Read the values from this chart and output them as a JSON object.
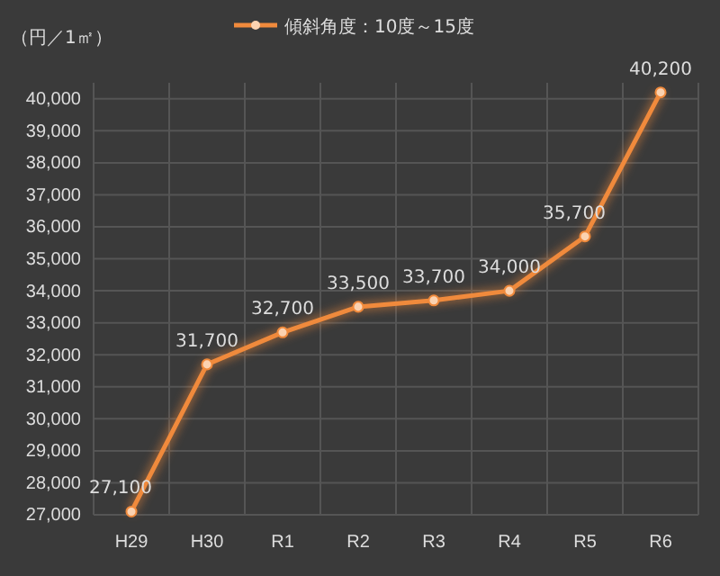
{
  "chart_data": {
    "type": "line",
    "ylabel": "（円／1㎡）",
    "categories": [
      "H29",
      "H30",
      "R1",
      "R2",
      "R3",
      "R4",
      "R5",
      "R6"
    ],
    "series": [
      {
        "name": "傾斜角度：10度～15度",
        "color": "#f08a3c",
        "values": [
          27100,
          31700,
          32700,
          33500,
          33700,
          34000,
          35700,
          40200
        ],
        "value_labels": [
          "27,100",
          "31,700",
          "32,700",
          "33,500",
          "33,700",
          "34,000",
          "35,700",
          "40,200"
        ]
      }
    ],
    "ylim": [
      27000,
      40500
    ],
    "yticks": [
      {
        "value": 27000,
        "label": "27,000"
      },
      {
        "value": 28000,
        "label": "28,000"
      },
      {
        "value": 29000,
        "label": "29,000"
      },
      {
        "value": 30000,
        "label": "30,000"
      },
      {
        "value": 31000,
        "label": "31,000"
      },
      {
        "value": 32000,
        "label": "32,000"
      },
      {
        "value": 33000,
        "label": "33,000"
      },
      {
        "value": 34000,
        "label": "34,000"
      },
      {
        "value": 35000,
        "label": "35,000"
      },
      {
        "value": 36000,
        "label": "36,000"
      },
      {
        "value": 37000,
        "label": "37,000"
      },
      {
        "value": 38000,
        "label": "38,000"
      },
      {
        "value": 39000,
        "label": "39,000"
      },
      {
        "value": 40000,
        "label": "40,000"
      }
    ],
    "grid": true,
    "legend": "top",
    "marker": "circle",
    "line_style": "solid"
  }
}
